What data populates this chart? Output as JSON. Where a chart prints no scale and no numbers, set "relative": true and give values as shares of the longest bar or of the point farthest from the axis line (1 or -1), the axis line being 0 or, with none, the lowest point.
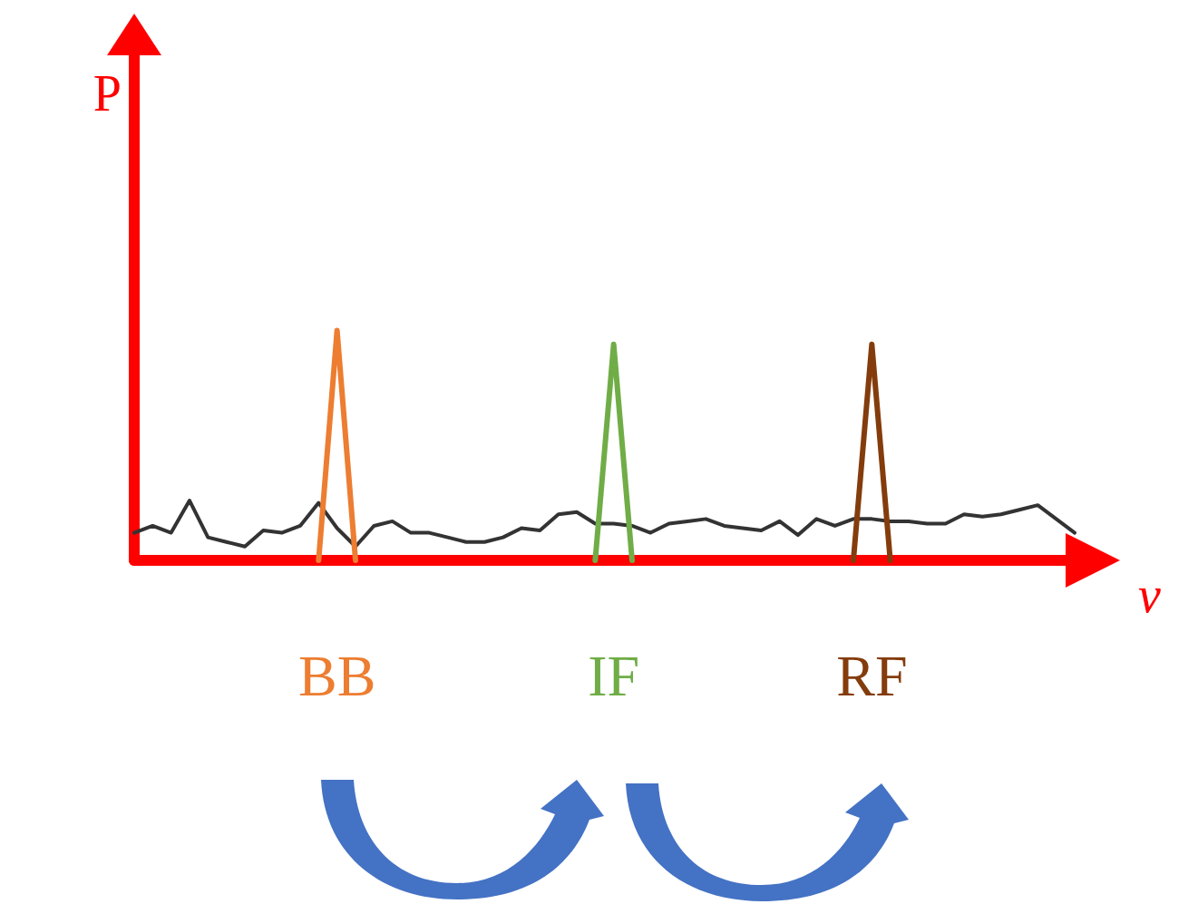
{
  "chart_data": {
    "type": "line",
    "relative": true,
    "xlabel": "ν",
    "ylabel": "P",
    "legend": false,
    "grid": false,
    "marker": "none",
    "line_style": "solid",
    "categories": [
      null,
      null,
      null,
      null,
      null,
      null,
      null,
      null,
      null,
      null,
      null,
      null,
      null,
      null,
      null,
      null,
      null,
      null,
      null,
      null,
      null,
      null,
      null,
      null,
      null,
      null,
      null,
      null,
      null,
      null,
      null,
      null,
      null,
      null,
      null,
      null,
      null,
      null,
      null,
      null,
      null,
      null,
      null,
      null,
      null,
      null,
      null,
      null,
      null,
      null,
      null,
      null
    ],
    "series": [
      {
        "color": "#333333",
        "values": [
          0.12,
          0.15,
          0.12,
          0.26,
          0.1,
          0.08,
          0.06,
          0.13,
          0.12,
          0.15,
          0.25,
          0.14,
          0.06,
          0.15,
          0.17,
          0.12,
          0.12,
          0.1,
          0.08,
          0.08,
          0.1,
          0.14,
          0.13,
          0.2,
          0.21,
          0.16,
          0.16,
          0.15,
          0.12,
          0.16,
          0.17,
          0.18,
          0.15,
          0.14,
          0.13,
          0.17,
          0.11,
          0.18,
          0.15,
          0.18,
          0.18,
          0.17,
          0.17,
          0.16,
          0.16,
          0.2,
          0.19,
          0.2,
          0.22,
          0.24,
          0.18,
          0.12
        ]
      },
      {
        "name": "BB",
        "color": "#ed7d31",
        "values": [
          null,
          null,
          null,
          null,
          null,
          null,
          null,
          null,
          null,
          null,
          0,
          1,
          0,
          null,
          null,
          null,
          null,
          null,
          null,
          null,
          null,
          null,
          null,
          null,
          null,
          null,
          null,
          null,
          null,
          null,
          null,
          null,
          null,
          null,
          null,
          null,
          null,
          null,
          null,
          null,
          null,
          null,
          null,
          null,
          null,
          null,
          null,
          null,
          null,
          null,
          null,
          null
        ]
      },
      {
        "name": "IF",
        "color": "#70ad47",
        "values": [
          null,
          null,
          null,
          null,
          null,
          null,
          null,
          null,
          null,
          null,
          null,
          null,
          null,
          null,
          null,
          null,
          null,
          null,
          null,
          null,
          null,
          null,
          null,
          null,
          null,
          0,
          0.94,
          0,
          null,
          null,
          null,
          null,
          null,
          null,
          null,
          null,
          null,
          null,
          null,
          null,
          null,
          null,
          null,
          null,
          null,
          null,
          null,
          null,
          null,
          null,
          null,
          null
        ]
      },
      {
        "name": "RF",
        "color": "#843c0c",
        "values": [
          null,
          null,
          null,
          null,
          null,
          null,
          null,
          null,
          null,
          null,
          null,
          null,
          null,
          null,
          null,
          null,
          null,
          null,
          null,
          null,
          null,
          null,
          null,
          null,
          null,
          null,
          null,
          null,
          null,
          null,
          null,
          null,
          null,
          null,
          null,
          null,
          null,
          null,
          null,
          0,
          0.94,
          0,
          null,
          null,
          null,
          null,
          null,
          null,
          null,
          null,
          null,
          null
        ]
      }
    ]
  }
}
